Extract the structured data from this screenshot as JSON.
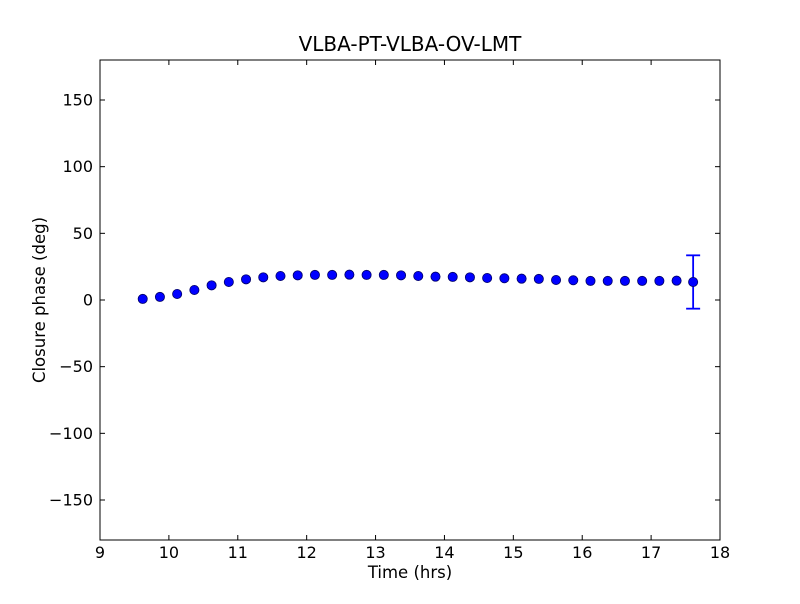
{
  "figure": {
    "background": "#ffffff",
    "axes_color": "#000000"
  },
  "chart_data": {
    "type": "scatter",
    "title": "VLBA-PT-VLBA-OV-LMT",
    "xlabel": "Time (hrs)",
    "ylabel": "Closure phase (deg)",
    "xlim": [
      9,
      18
    ],
    "ylim": [
      -180,
      180
    ],
    "xticks": [
      9,
      10,
      11,
      12,
      13,
      14,
      15,
      16,
      17,
      18
    ],
    "yticks": [
      -150,
      -100,
      -50,
      0,
      50,
      100,
      150
    ],
    "xtick_labels": [
      "9",
      "10",
      "11",
      "12",
      "13",
      "14",
      "15",
      "16",
      "17",
      "18"
    ],
    "ytick_labels": [
      "−150",
      "−100",
      "−50",
      "0",
      "50",
      "100",
      "150"
    ],
    "grid": false,
    "legend": null,
    "marker": {
      "shape": "circle",
      "color": "#0000ff",
      "edge_color": "#000066",
      "radius_px": 4.6
    },
    "errorbar_color": "#0000ff",
    "series": [
      {
        "name": "closure-phase",
        "points": [
          {
            "x": 9.62,
            "y": 0.8
          },
          {
            "x": 9.87,
            "y": 2.3
          },
          {
            "x": 10.12,
            "y": 4.5
          },
          {
            "x": 10.37,
            "y": 7.5
          },
          {
            "x": 10.62,
            "y": 11.0
          },
          {
            "x": 10.87,
            "y": 13.5
          },
          {
            "x": 11.12,
            "y": 15.5
          },
          {
            "x": 11.37,
            "y": 17.0
          },
          {
            "x": 11.62,
            "y": 18.0
          },
          {
            "x": 11.87,
            "y": 18.5
          },
          {
            "x": 12.12,
            "y": 18.8
          },
          {
            "x": 12.37,
            "y": 18.8
          },
          {
            "x": 12.62,
            "y": 19.0
          },
          {
            "x": 12.87,
            "y": 18.8
          },
          {
            "x": 13.12,
            "y": 18.8
          },
          {
            "x": 13.37,
            "y": 18.5
          },
          {
            "x": 13.62,
            "y": 18.0
          },
          {
            "x": 13.87,
            "y": 17.5
          },
          {
            "x": 14.12,
            "y": 17.3
          },
          {
            "x": 14.37,
            "y": 17.0
          },
          {
            "x": 14.62,
            "y": 16.5
          },
          {
            "x": 14.87,
            "y": 16.3
          },
          {
            "x": 15.12,
            "y": 16.0
          },
          {
            "x": 15.37,
            "y": 15.8
          },
          {
            "x": 15.62,
            "y": 15.0
          },
          {
            "x": 15.87,
            "y": 14.8
          },
          {
            "x": 16.12,
            "y": 14.3
          },
          {
            "x": 16.37,
            "y": 14.3
          },
          {
            "x": 16.62,
            "y": 14.3
          },
          {
            "x": 16.87,
            "y": 14.3
          },
          {
            "x": 17.12,
            "y": 14.3
          },
          {
            "x": 17.37,
            "y": 14.5
          },
          {
            "x": 17.61,
            "y": 13.5,
            "err_plus": 20,
            "err_minus": 20
          }
        ]
      }
    ]
  }
}
